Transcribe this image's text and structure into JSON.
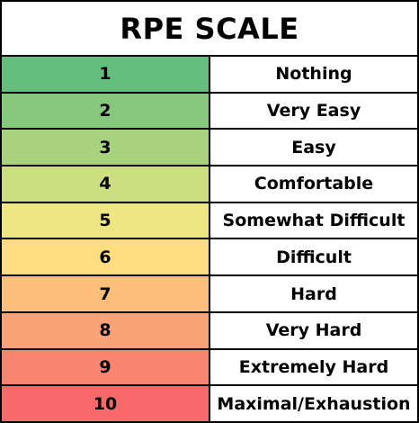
{
  "title": "RPE SCALE",
  "levels": [
    {
      "number": "1",
      "label": "Nothing",
      "color": "#63be7b"
    },
    {
      "number": "2",
      "label": "Very Easy",
      "color": "#86c97d"
    },
    {
      "number": "3",
      "label": "Easy",
      "color": "#a9d27f"
    },
    {
      "number": "4",
      "label": "Comfortable",
      "color": "#cddd82"
    },
    {
      "number": "5",
      "label": "Somewhat Difficult",
      "color": "#eee683"
    },
    {
      "number": "6",
      "label": "Difficult",
      "color": "#fedd81"
    },
    {
      "number": "7",
      "label": "Hard",
      "color": "#fcbf7b"
    },
    {
      "number": "8",
      "label": "Very Hard",
      "color": "#fba276"
    },
    {
      "number": "9",
      "label": "Extremely Hard",
      "color": "#f98570"
    },
    {
      "number": "10",
      "label": "Maximal/Exhaustion",
      "color": "#f8696b"
    }
  ]
}
